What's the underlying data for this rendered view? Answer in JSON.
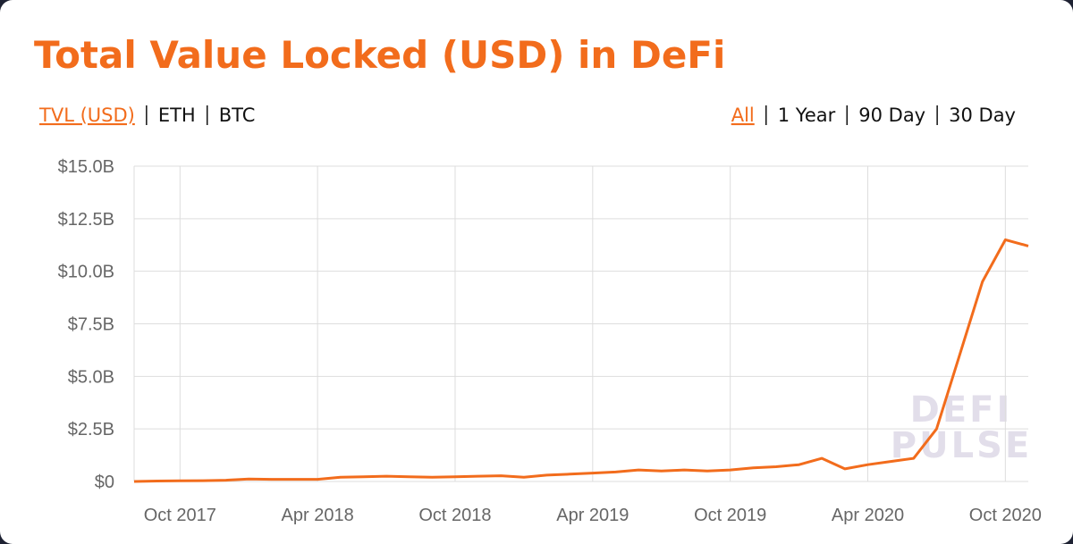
{
  "header": {
    "title": "Total Value Locked (USD) in DeFi"
  },
  "tabs": {
    "left": [
      "TVL (USD)",
      "ETH",
      "BTC"
    ],
    "left_selected": 0,
    "right": [
      "All",
      "1 Year",
      "90 Day",
      "30 Day"
    ],
    "right_selected": 0
  },
  "watermark": [
    "DEFI",
    "PULSE"
  ],
  "chart_data": {
    "type": "line",
    "color": "#f26c1c",
    "grid": true,
    "x": [
      "2017-08",
      "2017-09",
      "2017-10",
      "2017-11",
      "2017-12",
      "2018-01",
      "2018-02",
      "2018-03",
      "2018-04",
      "2018-05",
      "2018-06",
      "2018-07",
      "2018-08",
      "2018-09",
      "2018-10",
      "2018-11",
      "2018-12",
      "2019-01",
      "2019-02",
      "2019-03",
      "2019-04",
      "2019-05",
      "2019-06",
      "2019-07",
      "2019-08",
      "2019-09",
      "2019-10",
      "2019-11",
      "2019-12",
      "2020-01",
      "2020-02",
      "2020-03",
      "2020-04",
      "2020-05",
      "2020-06",
      "2020-07",
      "2020-08",
      "2020-09",
      "2020-10",
      "2020-11"
    ],
    "values": [
      0,
      0.02,
      0.03,
      0.04,
      0.06,
      0.12,
      0.1,
      0.1,
      0.1,
      0.2,
      0.22,
      0.25,
      0.22,
      0.2,
      0.22,
      0.25,
      0.27,
      0.2,
      0.3,
      0.35,
      0.4,
      0.45,
      0.55,
      0.5,
      0.55,
      0.5,
      0.55,
      0.65,
      0.7,
      0.8,
      1.1,
      0.6,
      0.8,
      0.95,
      1.1,
      2.5,
      6.0,
      9.5,
      11.5,
      11.2
    ],
    "xlim": [
      "2017-08",
      "2020-11"
    ],
    "xticks": [
      {
        "value": "2017-10",
        "label": "Oct 2017"
      },
      {
        "value": "2018-04",
        "label": "Apr 2018"
      },
      {
        "value": "2018-10",
        "label": "Oct 2018"
      },
      {
        "value": "2019-04",
        "label": "Apr 2019"
      },
      {
        "value": "2019-10",
        "label": "Oct 2019"
      },
      {
        "value": "2020-04",
        "label": "Apr 2020"
      },
      {
        "value": "2020-10",
        "label": "Oct 2020"
      }
    ],
    "ylim": [
      0,
      15
    ],
    "yticks": [
      {
        "value": 0,
        "label": "$0"
      },
      {
        "value": 2.5,
        "label": "$2.5B"
      },
      {
        "value": 5,
        "label": "$5.0B"
      },
      {
        "value": 7.5,
        "label": "$7.5B"
      },
      {
        "value": 10,
        "label": "$10.0B"
      },
      {
        "value": 12.5,
        "label": "$12.5B"
      },
      {
        "value": 15,
        "label": "$15.0B"
      }
    ]
  }
}
